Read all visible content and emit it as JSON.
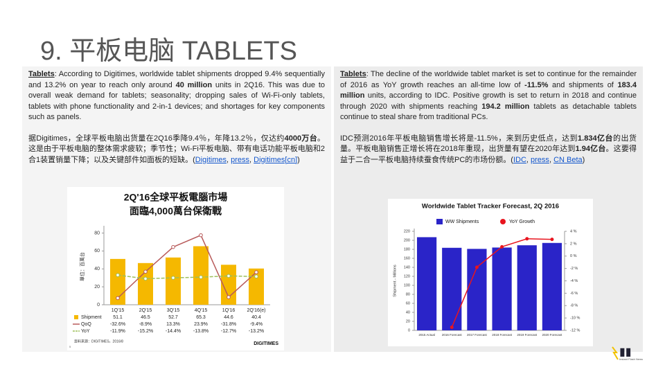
{
  "title": "9. 平板电脑 TABLETS",
  "panels": [
    {
      "paragraphs": [
        [
          {
            "text": "Tablets",
            "style": "bold-underline"
          },
          {
            "text": ": According to Digitimes, worldwide tablet shipments dropped 9.4% sequentially and 13.2% on year to reach only around "
          },
          {
            "text": "40 million",
            "style": "bold"
          },
          {
            "text": " units in 2Q16. This was due to overall weak demand for tablets; seasonality; dropping sales of Wi-Fi-only tablets, tablets with phone functionality and 2-in-1 devices; and shortages for key components such as panels."
          }
        ],
        [
          {
            "text": "据Digitimes，全球平板电脑出货量在2Q16季降9.4％，年降13.2％，仅达约"
          },
          {
            "text": "4000万台",
            "style": "bold"
          },
          {
            "text": "。这是由于平板电脑的整体需求疲软；季节性；Wi-Fi平板电脑、带有电话功能平板电脑和2合1装置销量下降；以及关键部件如面板的短缺。("
          },
          {
            "text": "Digitimes",
            "style": "link"
          },
          {
            "text": ", "
          },
          {
            "text": "press",
            "style": "link"
          },
          {
            "text": ", "
          },
          {
            "text": "Digitimes[cn]",
            "style": "link"
          },
          {
            "text": ")"
          }
        ]
      ]
    },
    {
      "paragraphs": [
        [
          {
            "text": "Tablets",
            "style": "bold-underline"
          },
          {
            "text": ": The decline of the worldwide tablet market is set to continue for the remainder of 2016 as YoY growth reaches an all-time low of "
          },
          {
            "text": "-11.5%",
            "style": "bold"
          },
          {
            "text": " and shipments of "
          },
          {
            "text": "183.4 million",
            "style": "bold"
          },
          {
            "text": " units, according to IDC. Positive growth is set to return in 2018 and continue through 2020 with shipments reaching "
          },
          {
            "text": "194.2 million",
            "style": "bold"
          },
          {
            "text": " tablets as detachable tablets continue to steal share from traditional PCs."
          }
        ],
        [
          {
            "text": "IDC预测2016年平板电脑销售增长将是-11.5%，来到历史低点，达到"
          },
          {
            "text": "1.834亿台",
            "style": "bold"
          },
          {
            "text": "的出货量。平板电脑销售正增长将在2018年重现，出货量有望在2020年达到"
          },
          {
            "text": "1.94亿台",
            "style": "bold"
          },
          {
            "text": "。这要得益于二合一平板电脑持续蚕食传统PC的市场份额。("
          },
          {
            "text": "IDC",
            "style": "link"
          },
          {
            "text": ", "
          },
          {
            "text": "press",
            "style": "link"
          },
          {
            "text": ", "
          },
          {
            "text": "CN Beta",
            "style": "link"
          },
          {
            "text": ")"
          }
        ]
      ]
    }
  ],
  "chart_data": [
    {
      "type": "bar",
      "title": "2Q'16全球平板電腦市場",
      "subtitle": "面臨4,000萬台保衛戰",
      "y_label": "單位：百萬台",
      "source": "資料來源：DIGITIMES，2016/8",
      "brand": "DIGITIMES",
      "page_number": "5",
      "categories": [
        "1Q'15",
        "2Q'15",
        "3Q'15",
        "4Q'15",
        "1Q'16",
        "2Q'16(e)"
      ],
      "ylim": [
        0,
        85
      ],
      "yticks": [
        0,
        20,
        40,
        60,
        80
      ],
      "y2lim": [
        -38.6,
        29.9
      ],
      "series": [
        {
          "name": "Shipment",
          "kind": "bar",
          "color": "#f5b800",
          "values": [
            51.1,
            46.5,
            52.7,
            65.3,
            44.6,
            40.4
          ]
        },
        {
          "name": "QoQ",
          "kind": "line",
          "axis": "y2",
          "color": "#b85a5a",
          "values": [
            -32.6,
            -8.9,
            13.3,
            23.9,
            -31.8,
            -9.4
          ],
          "value_labels": [
            "-32.6%",
            "-8.9%",
            "13.3%",
            "23.9%",
            "-31.8%",
            "-9.4%"
          ]
        },
        {
          "name": "YoY",
          "kind": "line",
          "axis": "y2",
          "color": "#9dbf5a",
          "values": [
            -11.9,
            -15.2,
            -14.4,
            -13.8,
            -12.7,
            -13.2
          ],
          "value_labels": [
            "-11.9%",
            "-15.2%",
            "-14.4%",
            "-13.8%",
            "-12.7%",
            "-13.2%"
          ]
        }
      ]
    },
    {
      "type": "bar",
      "title": "Worldwide Tablet Tracker Forecast, 2Q 2016",
      "y_label": "Shipment - Millions",
      "categories": [
        "2015 Actual",
        "2016 Forecast",
        "2017 Forecast",
        "2018 Forecast",
        "2019 Forecast",
        "2020 Forecast"
      ],
      "ylim": [
        0,
        220
      ],
      "yticks": [
        0,
        20,
        40,
        60,
        80,
        100,
        120,
        140,
        160,
        180,
        200,
        220
      ],
      "y2lim": [
        -12,
        4
      ],
      "y2ticks": [
        {
          "value": 4,
          "label": "4 %"
        },
        {
          "value": 2,
          "label": "2 %"
        },
        {
          "value": 0,
          "label": "0 %"
        },
        {
          "value": -2,
          "label": "-2 %"
        },
        {
          "value": -4,
          "label": "-4 %"
        },
        {
          "value": -6,
          "label": "-6 %"
        },
        {
          "value": -8,
          "label": "-8 %"
        },
        {
          "value": -10,
          "label": "-10 %"
        },
        {
          "value": -12,
          "label": "-12 %"
        }
      ],
      "series": [
        {
          "name": "WW Shipments",
          "kind": "bar",
          "color": "#2a24c8",
          "values": [
            207,
            183.4,
            181,
            184,
            189,
            194.2
          ]
        },
        {
          "name": "YoY Growth",
          "kind": "line",
          "axis": "y2",
          "color": "#e8141e",
          "values": [
            null,
            -11.5,
            -1.8,
            1.5,
            2.8,
            2.7
          ]
        }
      ]
    }
  ],
  "logo_text": "Instant Flash News"
}
